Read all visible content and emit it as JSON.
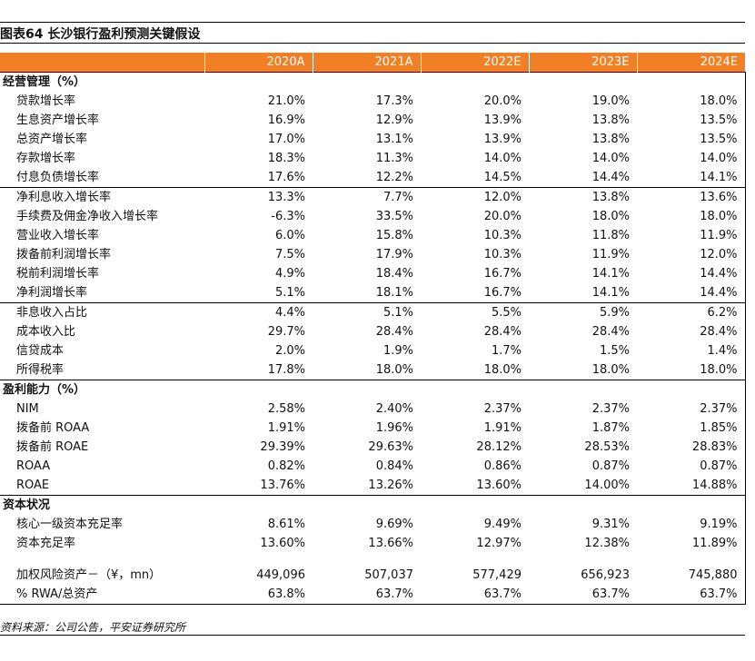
{
  "title": "图表64   长沙银行盈利预测关键假设",
  "columns": [
    "2020A",
    "2021A",
    "2022E",
    "2023E",
    "2024E"
  ],
  "sections": [
    {
      "title": "经营管理（%）",
      "groups": [
        [
          {
            "label": "贷款增长率",
            "values": [
              "21.0%",
              "17.3%",
              "20.0%",
              "19.0%",
              "18.0%"
            ]
          },
          {
            "label": "生息资产增长率",
            "values": [
              "16.9%",
              "12.9%",
              "13.9%",
              "13.8%",
              "13.5%"
            ]
          },
          {
            "label": "总资产增长率",
            "values": [
              "17.0%",
              "13.1%",
              "13.9%",
              "13.8%",
              "13.5%"
            ]
          },
          {
            "label": "存款增长率",
            "values": [
              "18.3%",
              "11.3%",
              "14.0%",
              "14.0%",
              "14.0%"
            ]
          },
          {
            "label": "付息负债增长率",
            "values": [
              "17.6%",
              "12.2%",
              "14.5%",
              "14.4%",
              "14.1%"
            ]
          }
        ],
        [
          {
            "label": "净利息收入增长率",
            "values": [
              "13.3%",
              "7.7%",
              "12.0%",
              "13.8%",
              "13.6%"
            ]
          },
          {
            "label": "手续费及佣金净收入增长率",
            "values": [
              "-6.3%",
              "33.5%",
              "20.0%",
              "18.0%",
              "18.0%"
            ]
          },
          {
            "label": "营业收入增长率",
            "values": [
              "6.0%",
              "15.8%",
              "10.3%",
              "11.8%",
              "11.9%"
            ]
          },
          {
            "label": "拨备前利润增长率",
            "values": [
              "7.5%",
              "17.9%",
              "10.3%",
              "11.9%",
              "12.0%"
            ]
          },
          {
            "label": "税前利润增长率",
            "values": [
              "4.9%",
              "18.4%",
              "16.7%",
              "14.1%",
              "14.4%"
            ]
          },
          {
            "label": "净利润增长率",
            "values": [
              "5.1%",
              "18.1%",
              "16.7%",
              "14.1%",
              "14.4%"
            ]
          }
        ],
        [
          {
            "label": "非息收入占比",
            "values": [
              "4.4%",
              "5.1%",
              "5.5%",
              "5.9%",
              "6.2%"
            ]
          },
          {
            "label": "成本收入比",
            "values": [
              "29.7%",
              "28.4%",
              "28.4%",
              "28.4%",
              "28.4%"
            ]
          },
          {
            "label": "信贷成本",
            "values": [
              "2.0%",
              "1.9%",
              "1.7%",
              "1.5%",
              "1.4%"
            ]
          },
          {
            "label": "所得税率",
            "values": [
              "17.8%",
              "18.0%",
              "18.0%",
              "18.0%",
              "18.0%"
            ]
          }
        ]
      ]
    },
    {
      "title": "盈利能力（%）",
      "groups": [
        [
          {
            "label": "NIM",
            "values": [
              "2.58%",
              "2.40%",
              "2.37%",
              "2.37%",
              "2.37%"
            ]
          },
          {
            "label": "拨备前 ROAA",
            "values": [
              "1.91%",
              "1.96%",
              "1.91%",
              "1.87%",
              "1.85%"
            ]
          },
          {
            "label": "拨备前 ROAE",
            "values": [
              "29.39%",
              "29.63%",
              "28.12%",
              "28.53%",
              "28.83%"
            ]
          },
          {
            "label": "ROAA",
            "values": [
              "0.82%",
              "0.84%",
              "0.86%",
              "0.87%",
              "0.87%"
            ]
          },
          {
            "label": "ROAE",
            "values": [
              "13.76%",
              "13.26%",
              "13.60%",
              "14.00%",
              "14.88%"
            ]
          }
        ]
      ]
    },
    {
      "title": "资本状况",
      "groups": [
        [
          {
            "label": "核心一级资本充足率",
            "values": [
              "8.61%",
              "9.69%",
              "9.49%",
              "9.31%",
              "9.19%"
            ]
          },
          {
            "label": "资本充足率",
            "values": [
              "13.60%",
              "13.66%",
              "12.97%",
              "12.38%",
              "11.89%"
            ]
          },
          {
            "gap": true
          },
          {
            "label": "加权风险资产－（¥，mn）",
            "values": [
              "449,096",
              "507,037",
              "577,429",
              "656,923",
              "745,880"
            ]
          },
          {
            "label": "% RWA/总资产",
            "values": [
              "63.8%",
              "63.7%",
              "63.7%",
              "63.7%",
              "63.7%"
            ]
          }
        ]
      ]
    }
  ],
  "footnote": "资料来源：公司公告，平安证券研究所"
}
